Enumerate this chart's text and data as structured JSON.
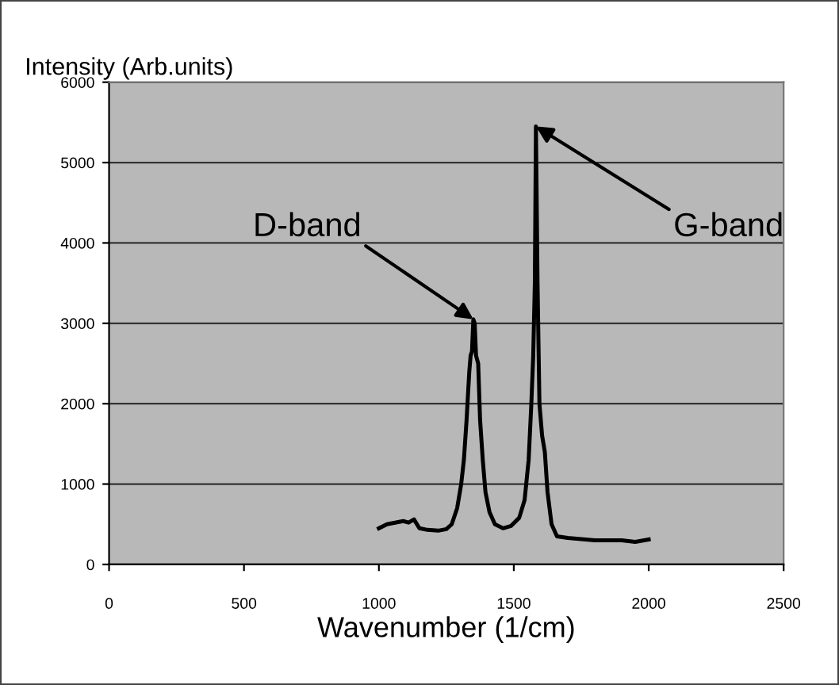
{
  "chart_data": {
    "type": "line",
    "ylabel": "Intensity (Arb.units)",
    "xlabel": "Wavenumber (1/cm)",
    "x": [
      1000,
      1030,
      1060,
      1090,
      1110,
      1130,
      1150,
      1180,
      1220,
      1250,
      1270,
      1290,
      1305,
      1315,
      1325,
      1335,
      1340,
      1345,
      1350,
      1355,
      1360,
      1368,
      1375,
      1385,
      1395,
      1410,
      1430,
      1460,
      1490,
      1520,
      1540,
      1555,
      1565,
      1572,
      1578,
      1582,
      1588,
      1595,
      1605,
      1615,
      1625,
      1640,
      1660,
      1700,
      1800,
      1900,
      1950,
      2000
    ],
    "series": [
      {
        "color": "#000000",
        "values": [
          450,
          500,
          520,
          540,
          520,
          560,
          450,
          430,
          420,
          440,
          500,
          700,
          1000,
          1300,
          1800,
          2400,
          2600,
          2650,
          3050,
          3000,
          2600,
          2500,
          1800,
          1300,
          900,
          650,
          500,
          450,
          480,
          580,
          800,
          1300,
          2000,
          2600,
          3500,
          5450,
          3500,
          2000,
          1600,
          1400,
          900,
          500,
          350,
          330,
          300,
          300,
          280,
          310
        ]
      }
    ],
    "xlim": [
      0,
      2500
    ],
    "xticks": [
      0,
      500,
      1000,
      1500,
      2000,
      2500
    ],
    "ylim": [
      0,
      6000
    ],
    "yticks": [
      0,
      1000,
      2000,
      3000,
      4000,
      5000,
      6000
    ],
    "grid": "y",
    "marker": "none",
    "line_style": "solid",
    "annotations": [
      {
        "text": "D-band",
        "x": 1350,
        "y": 3050
      },
      {
        "text": "G-band",
        "x": 1582,
        "y": 5450
      }
    ]
  }
}
